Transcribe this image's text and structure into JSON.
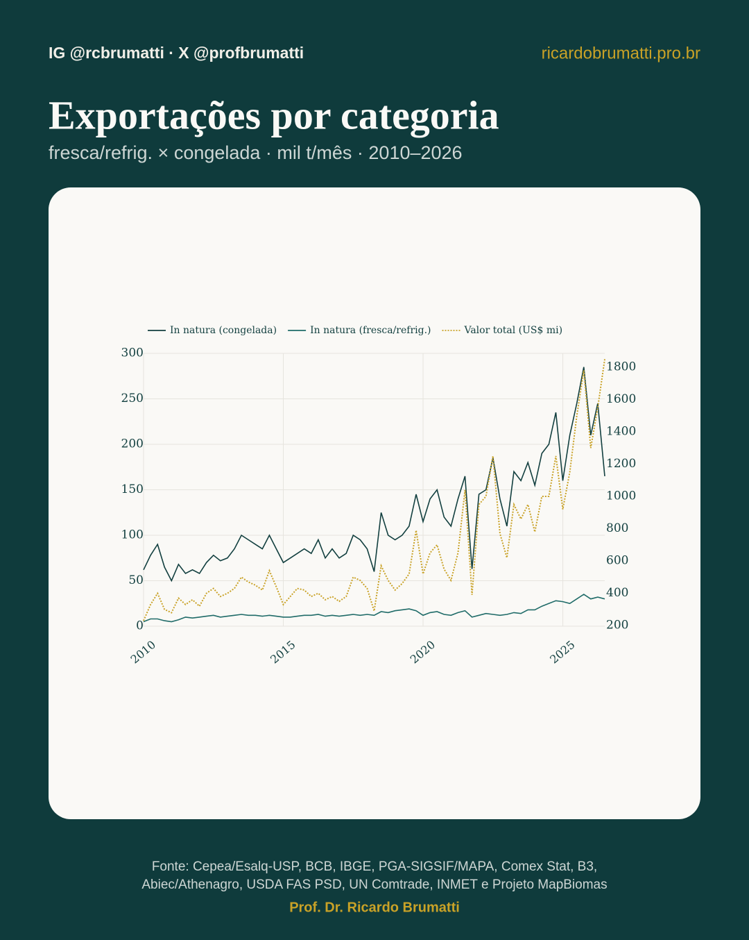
{
  "header": {
    "handles": "IG @rcbrumatti · X @profbrumatti",
    "site": "ricardobrumatti.pro.br",
    "title": "Exportações por categoria",
    "subtitle": "fresca/refrig. × congelada · mil t/mês · 2010–2026"
  },
  "chart_data": {
    "type": "line",
    "x": [
      2010,
      2010.25,
      2010.5,
      2010.75,
      2011,
      2011.25,
      2011.5,
      2011.75,
      2012,
      2012.25,
      2012.5,
      2012.75,
      2013,
      2013.25,
      2013.5,
      2013.75,
      2014,
      2014.25,
      2014.5,
      2014.75,
      2015,
      2015.25,
      2015.5,
      2015.75,
      2016,
      2016.25,
      2016.5,
      2016.75,
      2017,
      2017.25,
      2017.5,
      2017.75,
      2018,
      2018.25,
      2018.5,
      2018.75,
      2019,
      2019.25,
      2019.5,
      2019.75,
      2020,
      2020.25,
      2020.5,
      2020.75,
      2021,
      2021.25,
      2021.5,
      2021.75,
      2022,
      2022.25,
      2022.5,
      2022.75,
      2023,
      2023.25,
      2023.5,
      2023.75,
      2024,
      2024.25,
      2024.5,
      2024.75,
      2025,
      2025.25,
      2025.5,
      2025.75,
      2026,
      2026.25,
      2026.5
    ],
    "series": [
      {
        "name": "In natura (congelada)",
        "color": "#123f3f",
        "style": "solid",
        "values": [
          62,
          78,
          90,
          65,
          50,
          68,
          58,
          62,
          58,
          70,
          78,
          72,
          75,
          85,
          100,
          95,
          90,
          85,
          100,
          85,
          70,
          75,
          80,
          85,
          80,
          95,
          75,
          85,
          75,
          80,
          100,
          95,
          85,
          60,
          125,
          100,
          95,
          100,
          110,
          145,
          115,
          140,
          150,
          120,
          110,
          140,
          165,
          63,
          145,
          150,
          185,
          140,
          110,
          170,
          160,
          180,
          155,
          190,
          200,
          235,
          160,
          210,
          245,
          285,
          210,
          245,
          165
        ]
      },
      {
        "name": "In natura (fresca/refrig.)",
        "color": "#1f6b68",
        "style": "solid",
        "values": [
          5,
          8,
          8,
          6,
          5,
          7,
          10,
          9,
          10,
          11,
          12,
          10,
          11,
          12,
          13,
          12,
          12,
          11,
          12,
          11,
          10,
          10,
          11,
          12,
          12,
          13,
          11,
          12,
          11,
          12,
          13,
          12,
          13,
          12,
          16,
          15,
          17,
          18,
          19,
          17,
          12,
          15,
          16,
          13,
          12,
          15,
          17,
          10,
          12,
          14,
          13,
          12,
          13,
          15,
          14,
          18,
          18,
          22,
          25,
          28,
          27,
          25,
          30,
          35,
          30,
          32,
          30
        ]
      },
      {
        "name": "Valor total (US$ mi)",
        "color": "#c9a227",
        "style": "dotted",
        "axis": "y2",
        "values": [
          230,
          330,
          400,
          300,
          280,
          370,
          330,
          360,
          320,
          400,
          430,
          380,
          400,
          430,
          500,
          470,
          450,
          420,
          540,
          440,
          330,
          380,
          430,
          420,
          380,
          400,
          360,
          380,
          350,
          380,
          500,
          480,
          430,
          290,
          570,
          480,
          420,
          460,
          520,
          790,
          520,
          650,
          700,
          550,
          480,
          650,
          1040,
          390,
          950,
          1000,
          1250,
          770,
          620,
          950,
          860,
          950,
          780,
          1000,
          1000,
          1250,
          920,
          1150,
          1500,
          1780,
          1300,
          1550,
          1850
        ]
      }
    ],
    "xlim": [
      2010,
      2026.5
    ],
    "xticks": [
      2010,
      2015,
      2020,
      2025
    ],
    "ylim": [
      0,
      300
    ],
    "yticks": [
      0,
      50,
      100,
      150,
      200,
      250,
      300
    ],
    "y2lim": [
      196,
      1886
    ],
    "y2ticks": [
      200,
      400,
      600,
      800,
      1000,
      1200,
      1400,
      1600,
      1800
    ],
    "grid": true,
    "legend": "top"
  },
  "footer": {
    "source": [
      "Fonte: Cepea/Esalq-USP, BCB, IBGE, PGA-SIGSIF/MAPA, Comex Stat, B3,",
      "Abiec/Athenagro, USDA FAS PSD, UN Comtrade, INMET e Projeto MapBiomas"
    ],
    "author": "Prof. Dr. Ricardo Brumatti"
  }
}
